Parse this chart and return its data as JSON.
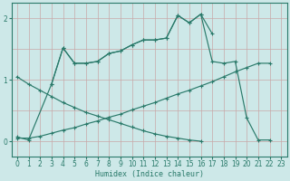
{
  "xlabel": "Humidex (Indice chaleur)",
  "x_values": [
    0,
    1,
    2,
    3,
    4,
    5,
    6,
    7,
    8,
    9,
    10,
    11,
    12,
    13,
    14,
    15,
    16,
    17,
    18,
    19,
    20,
    21,
    22,
    23
  ],
  "line_jagged": [
    0.07,
    0.02,
    null,
    0.93,
    1.52,
    1.27,
    1.27,
    1.3,
    1.43,
    1.47,
    1.57,
    1.65,
    1.65,
    1.68,
    2.05,
    1.93,
    2.07,
    1.75,
    null,
    null,
    null,
    null,
    null,
    null
  ],
  "line_jagged2": [
    null,
    null,
    null,
    0.93,
    1.52,
    1.27,
    1.27,
    1.3,
    1.43,
    1.47,
    1.57,
    1.65,
    1.65,
    1.68,
    2.05,
    1.93,
    2.07,
    1.3,
    1.27,
    1.3,
    0.38,
    0.02,
    0.02,
    null
  ],
  "line_asc": [
    0.05,
    0.05,
    0.08,
    0.13,
    0.18,
    0.22,
    0.28,
    0.33,
    0.39,
    0.44,
    0.51,
    0.57,
    0.63,
    0.7,
    0.77,
    0.83,
    0.9,
    0.97,
    1.05,
    1.13,
    1.2,
    1.27,
    1.27,
    null
  ],
  "line_desc": [
    1.05,
    0.93,
    0.83,
    0.73,
    0.63,
    0.55,
    0.47,
    0.41,
    0.35,
    0.29,
    0.23,
    0.17,
    0.12,
    0.08,
    0.05,
    0.02,
    0.0,
    null,
    null,
    null,
    null,
    null,
    null,
    null
  ],
  "line_desc2": [
    null,
    null,
    null,
    null,
    null,
    null,
    null,
    null,
    null,
    null,
    null,
    null,
    null,
    null,
    null,
    null,
    0.0,
    null,
    null,
    null,
    null,
    null,
    0.02,
    null
  ],
  "bg_color": "#cde8e8",
  "line_color": "#2a7a6a",
  "grid_h_color": "#c8a8a8",
  "grid_v_color": "#b0cccc",
  "ylim": [
    -0.25,
    2.25
  ],
  "xlim": [
    -0.5,
    23.5
  ],
  "yticks": [
    0,
    1,
    2
  ],
  "xticks": [
    0,
    1,
    2,
    3,
    4,
    5,
    6,
    7,
    8,
    9,
    10,
    11,
    12,
    13,
    14,
    15,
    16,
    17,
    18,
    19,
    20,
    21,
    22,
    23
  ]
}
